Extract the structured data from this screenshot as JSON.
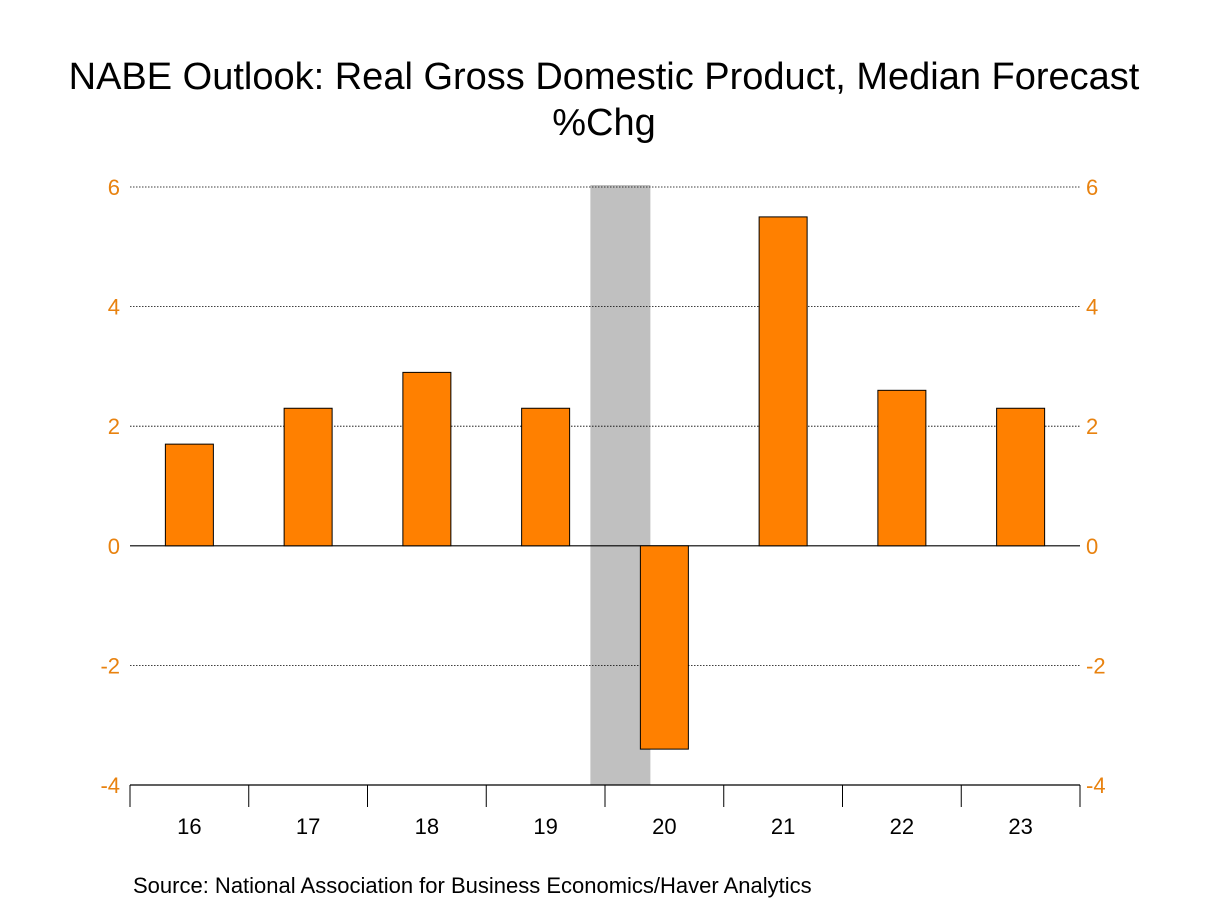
{
  "chart_data": {
    "type": "bar",
    "title": "NABE Outlook: Real Gross Domestic Product, Median Forecast",
    "subtitle": "%Chg",
    "categories": [
      "16",
      "17",
      "18",
      "19",
      "20",
      "21",
      "22",
      "23"
    ],
    "values": [
      1.7,
      2.3,
      2.9,
      2.3,
      -3.4,
      5.5,
      2.6,
      2.3
    ],
    "ylim": [
      -4,
      6
    ],
    "yticks": [
      "-4",
      "-2",
      "0",
      "2",
      "4",
      "6"
    ],
    "ytick_values": [
      -4,
      -2,
      0,
      2,
      4,
      6
    ],
    "grid": true,
    "shaded_categories": [
      "20"
    ],
    "source": "Source:  National Association for Business Economics/Haver Analytics"
  },
  "colors": {
    "bar": "#ff8000",
    "tick_label": "#e8820f",
    "shade": "#c0c0c0",
    "grid": "#000000"
  }
}
